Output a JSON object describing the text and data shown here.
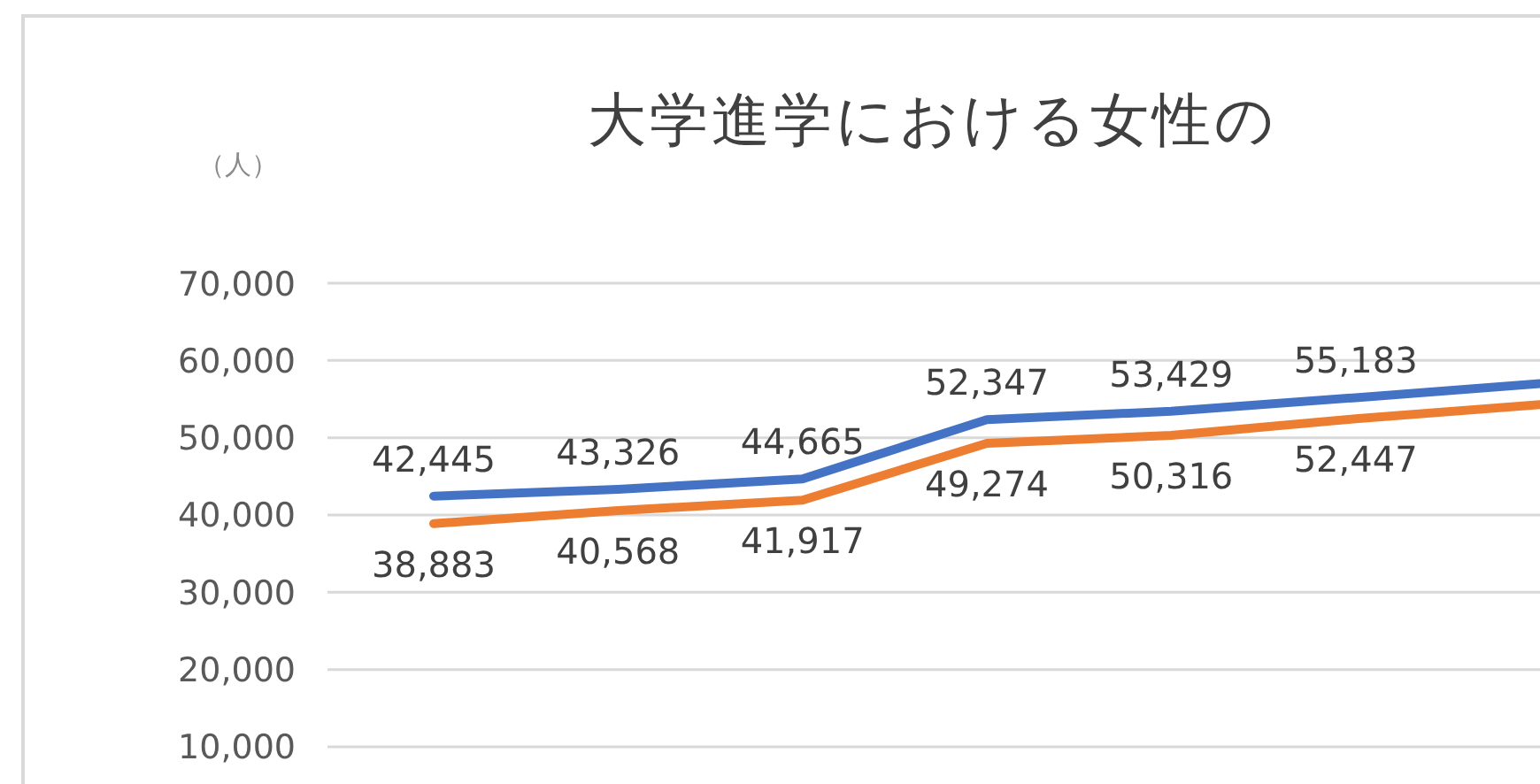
{
  "chart_data": {
    "type": "line",
    "title": "大学進学における女性の",
    "ylabel": "（人）",
    "categories": [
      null,
      null,
      null,
      null,
      null,
      null,
      null
    ],
    "series": [
      {
        "color": "#4472c4",
        "values": [
          42445,
          43326,
          44665,
          52347,
          53429,
          55183,
          57000
        ],
        "value_labels": [
          "42,445",
          "43,326",
          "44,665",
          "52,347",
          "53,429",
          "55,183",
          null
        ]
      },
      {
        "color": "#ed7d31",
        "values": [
          38883,
          40568,
          41917,
          49274,
          50316,
          52447,
          54300
        ],
        "value_labels": [
          "38,883",
          "40,568",
          "41,917",
          "49,274",
          "50,316",
          "52,447",
          null
        ]
      }
    ],
    "ylim": [
      10000,
      70000
    ],
    "yticks": [
      {
        "value": 10000,
        "label": "10,000"
      },
      {
        "value": 20000,
        "label": "20,000"
      },
      {
        "value": 30000,
        "label": "30,000"
      },
      {
        "value": 40000,
        "label": "40,000"
      },
      {
        "value": 50000,
        "label": "50,000"
      },
      {
        "value": 60000,
        "label": "60,000"
      },
      {
        "value": 70000,
        "label": "70,000"
      }
    ],
    "grid": "y",
    "tick_labels": "y",
    "marker": "none",
    "line_style": "solid"
  }
}
